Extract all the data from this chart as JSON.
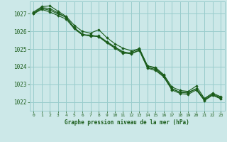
{
  "bg_color": "#cce8e8",
  "grid_color": "#99cccc",
  "line_color": "#1a5c1a",
  "marker_color": "#1a5c1a",
  "xlabel": "Graphe pression niveau de la mer (hPa)",
  "xlabel_color": "#1a5c1a",
  "ylim": [
    1021.5,
    1027.7
  ],
  "xlim": [
    -0.5,
    23.5
  ],
  "yticks": [
    1022,
    1023,
    1024,
    1025,
    1026,
    1027
  ],
  "xticks": [
    0,
    1,
    2,
    3,
    4,
    5,
    6,
    7,
    8,
    9,
    10,
    11,
    12,
    13,
    14,
    15,
    16,
    17,
    18,
    19,
    20,
    21,
    22,
    23
  ],
  "series": [
    [
      1027.0,
      1027.3,
      1027.2,
      1027.0,
      1026.8,
      1026.2,
      1025.8,
      1025.8,
      1025.7,
      1025.4,
      1025.1,
      1024.85,
      1024.75,
      1024.95,
      1023.95,
      1023.85,
      1023.45,
      1022.75,
      1022.55,
      1022.55,
      1022.75,
      1022.15,
      1022.45,
      1022.25
    ],
    [
      1027.1,
      1027.4,
      1027.45,
      1027.15,
      1026.85,
      1026.35,
      1026.0,
      1025.9,
      1026.1,
      1025.65,
      1025.3,
      1025.05,
      1024.9,
      1025.0,
      1024.05,
      1023.95,
      1023.55,
      1022.85,
      1022.65,
      1022.6,
      1022.9,
      1022.2,
      1022.5,
      1022.3
    ],
    [
      1027.0,
      1027.25,
      1027.1,
      1026.9,
      1026.7,
      1026.15,
      1025.8,
      1025.75,
      1025.7,
      1025.35,
      1025.05,
      1024.75,
      1024.8,
      1025.05,
      1024.05,
      1023.9,
      1023.5,
      1022.75,
      1022.55,
      1022.5,
      1022.75,
      1022.1,
      1022.4,
      1022.2
    ],
    [
      1027.05,
      1027.35,
      1027.3,
      1027.05,
      1026.8,
      1026.2,
      1025.85,
      1025.72,
      1025.75,
      1025.42,
      1025.12,
      1024.8,
      1024.72,
      1024.92,
      1023.92,
      1023.78,
      1023.42,
      1022.68,
      1022.48,
      1022.43,
      1022.68,
      1022.08,
      1022.38,
      1022.18
    ]
  ]
}
